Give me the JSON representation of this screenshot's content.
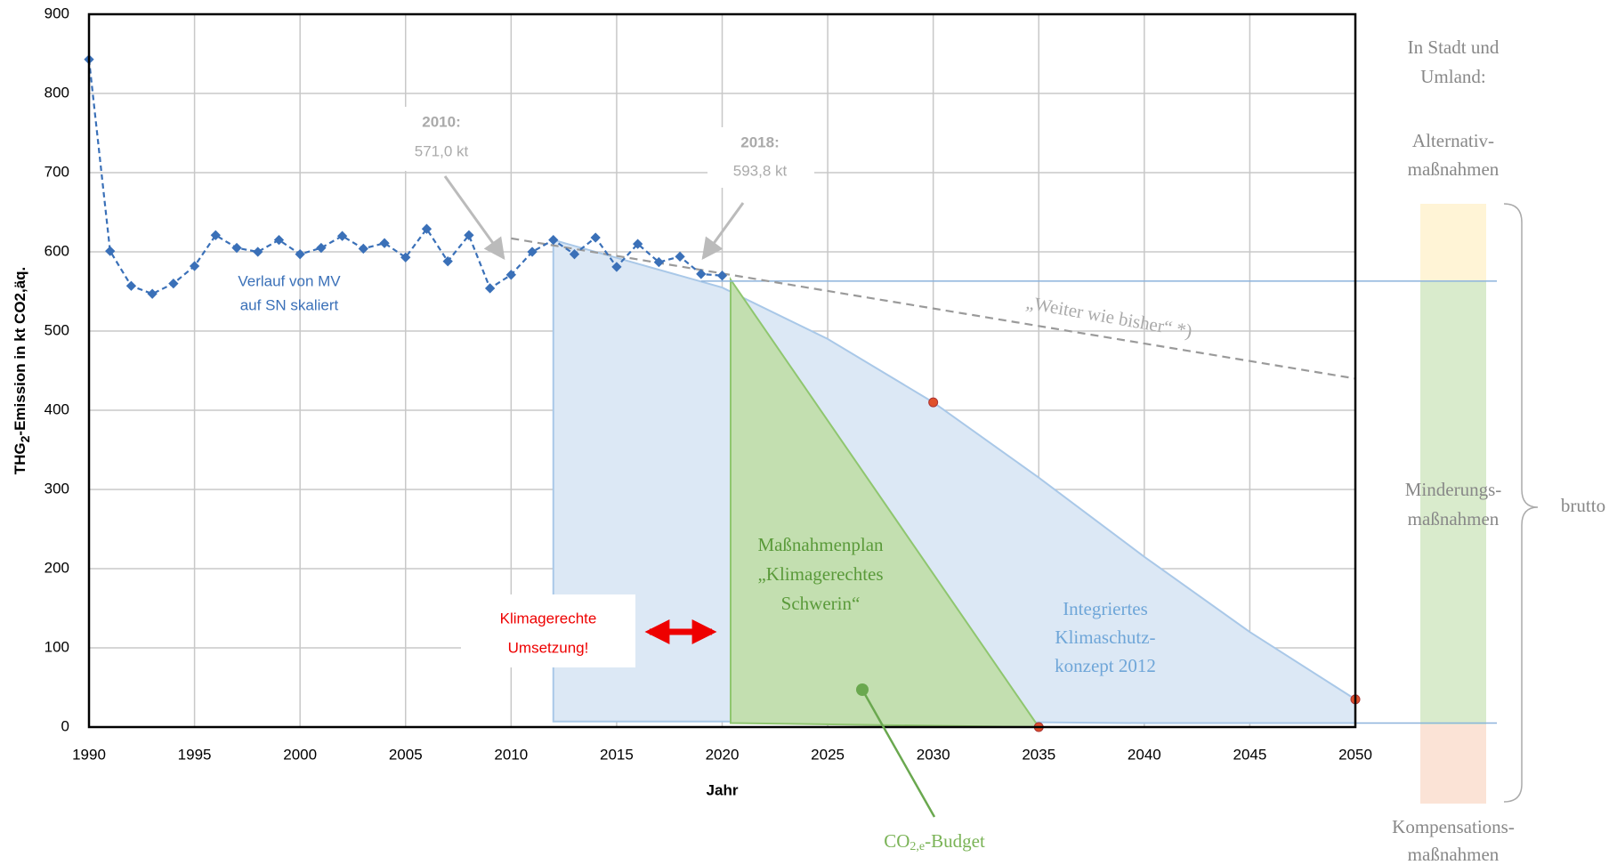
{
  "chart_data": {
    "type": "line",
    "xlabel": "Jahr",
    "ylabel": {
      "pre": "THG",
      "sub": "2",
      "post": "-Emission in kt CO2,äq."
    },
    "xlim": [
      1990,
      2050
    ],
    "ylim": [
      0,
      900
    ],
    "xticks": [
      1990,
      1995,
      2000,
      2005,
      2010,
      2015,
      2020,
      2025,
      2030,
      2035,
      2040,
      2045,
      2050
    ],
    "yticks": [
      0,
      100,
      200,
      300,
      400,
      500,
      600,
      700,
      800,
      900
    ],
    "grid": true,
    "history": {
      "color": "#3a70b8",
      "label": [
        "Verlauf von MV",
        "auf SN skaliert"
      ],
      "x": [
        1990,
        1991,
        1992,
        1993,
        1994,
        1995,
        1996,
        1997,
        1998,
        1999,
        2000,
        2001,
        2002,
        2003,
        2004,
        2005,
        2006,
        2007,
        2008,
        2009,
        2010,
        2011,
        2012,
        2013,
        2014,
        2015,
        2016,
        2017,
        2018,
        2019,
        2020
      ],
      "values": [
        843,
        601,
        557,
        547,
        560,
        582,
        621,
        605,
        600,
        615,
        597,
        605,
        620,
        604,
        611,
        593,
        629,
        588,
        621,
        554,
        571,
        600,
        615,
        597,
        618,
        581,
        610,
        587,
        594,
        572,
        570
      ]
    },
    "trend": {
      "color": "#9a9a9a",
      "label": "„Weiter wie bisher“ *)",
      "x": [
        2010,
        2050
      ],
      "values": [
        617,
        440
      ]
    },
    "concept": {
      "color": "#dce8f5",
      "stroke": "#a9c8e8",
      "label": [
        "Integriertes",
        "Klimaschutz-",
        "konzept 2012"
      ],
      "x": [
        2012,
        2020,
        2025,
        2030,
        2035,
        2040,
        2045,
        2050
      ],
      "values": [
        615,
        555,
        490,
        410,
        315,
        215,
        120,
        35
      ],
      "lower": [
        7,
        7,
        6,
        6,
        6,
        5,
        5,
        5
      ]
    },
    "plan": {
      "color": "#c3dfb0",
      "stroke": "#8fc66f",
      "label": [
        "Maßnahmenplan",
        "„Klimagerechtes",
        "Schwerin“"
      ],
      "x": [
        2020.4,
        2035,
        2020.4
      ],
      "values": [
        565,
        0,
        5
      ]
    },
    "targets": {
      "color": "#e0502a",
      "x": [
        2030,
        2035,
        2050
      ],
      "values": [
        410,
        0,
        35
      ]
    },
    "note2010": [
      "2010:",
      "571,0 kt"
    ],
    "note2018": [
      "2018:",
      "593,8 kt"
    ],
    "action": [
      "Klimagerechte",
      "Umsetzung!"
    ],
    "budget": {
      "pre": "CO",
      "sub": "2,e",
      "post": "-Budget"
    },
    "side_panel": {
      "header": [
        "In Stadt und",
        "Umland:"
      ],
      "alternativ": [
        "Alternativ-",
        "maßnahmen"
      ],
      "minderung": [
        "Minderungs-",
        "maßnahmen"
      ],
      "kompensation": [
        "Kompensations-",
        "maßnahmen"
      ],
      "brace": "brutto"
    }
  }
}
